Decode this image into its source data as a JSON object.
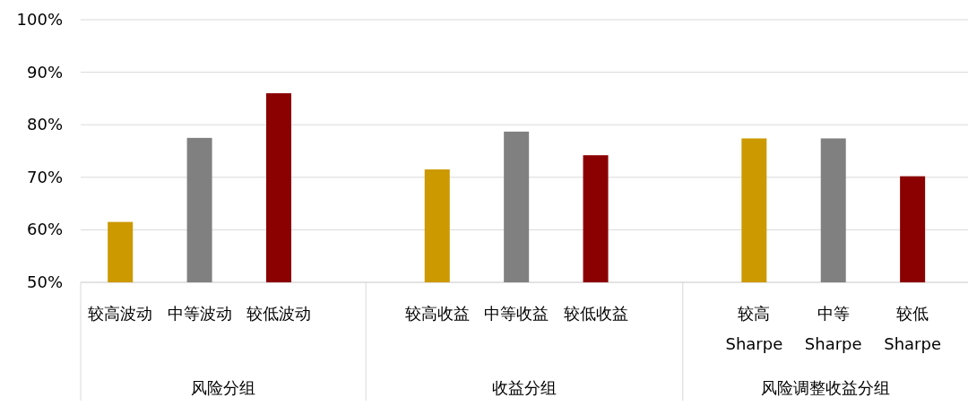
{
  "chart_data": {
    "type": "bar",
    "categories": [
      "较高波动",
      "中等波动",
      "较低波动",
      "较高收益",
      "中等收益",
      "较低收益",
      "较高\nSharpe",
      "中等\nSharpe",
      "较低\nSharpe"
    ],
    "values": [
      61.5,
      77.5,
      86,
      71.5,
      78.7,
      74.2,
      77.4,
      77.4,
      70.2
    ],
    "colors": [
      "#cc9900",
      "#808080",
      "#8b0000",
      "#cc9900",
      "#808080",
      "#8b0000",
      "#cc9900",
      "#808080",
      "#8b0000"
    ],
    "annotations": [
      "风险分组",
      "收益分组",
      "风险调整收益分组"
    ],
    "ylim": [
      50,
      100
    ],
    "yticks": [
      {
        "value": 50,
        "label": "50%"
      },
      {
        "value": 60,
        "label": "60%"
      },
      {
        "value": 70,
        "label": "70%"
      },
      {
        "value": 80,
        "label": "80%"
      },
      {
        "value": 90,
        "label": "90%"
      },
      {
        "value": 100,
        "label": "100%"
      }
    ],
    "grid": "y"
  }
}
